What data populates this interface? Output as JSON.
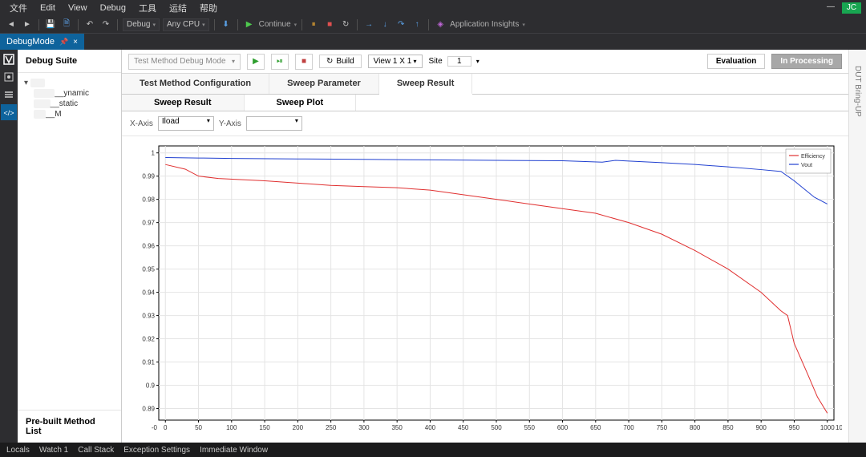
{
  "menu": {
    "items": [
      "文件",
      "Edit",
      "View",
      "Debug",
      "工具",
      "运结",
      "帮助"
    ]
  },
  "toolbar": {
    "combo_debug": "Debug",
    "combo_cpu": "Any CPU",
    "continue": "Continue",
    "appinsights": "Application Insights"
  },
  "doctab": {
    "name": "DebugMode"
  },
  "leftpanel": {
    "title": "Debug Suite",
    "tree_root": "...",
    "nodes": [
      "__ynamic",
      "__static",
      "__M"
    ],
    "bottom": "Pre-built Method List"
  },
  "maintop": {
    "method_combo": "Test Method Debug Mode",
    "build": "Build",
    "view": "View 1 X 1",
    "site_label": "Site",
    "site_value": "1",
    "evaluation": "Evaluation",
    "processing": "In Processing"
  },
  "tabs1": [
    "Test Method Configuration",
    "Sweep Parameter",
    "Sweep Result"
  ],
  "tabs1_active": 2,
  "tabs2": [
    "Sweep Result",
    "Sweep Plot"
  ],
  "tabs2_active": 1,
  "axis": {
    "x_label": "X-Axis",
    "x_value": "Iload",
    "y_label": "Y-Axis",
    "y_value": ""
  },
  "right_panel": "DUT Bring-UP",
  "status": [
    "Locals",
    "Watch 1",
    "Call Stack",
    "Exception Settings",
    "Immediate Window"
  ],
  "chart": {
    "type": "line",
    "xlim": [
      -10,
      1010
    ],
    "ylim": [
      0.885,
      1.003
    ],
    "xticks": [
      0,
      50,
      100,
      150,
      200,
      250,
      300,
      350,
      400,
      450,
      500,
      550,
      600,
      650,
      700,
      750,
      800,
      850,
      900,
      950,
      1000
    ],
    "xtick_extra_left": "-0",
    "xtick_extra_right": "10",
    "yticks": [
      0.89,
      0.9,
      0.91,
      0.92,
      0.93,
      0.94,
      0.95,
      0.96,
      0.97,
      0.98,
      0.99,
      1
    ],
    "grid_color": "#e4e4e4",
    "axis_color": "#000000",
    "background": "#ffffff",
    "legend": {
      "pos": "top-right",
      "border": "#808080",
      "items": [
        {
          "label": "Efficiency",
          "color": "#e03030"
        },
        {
          "label": "Vout",
          "color": "#2040d0"
        }
      ]
    },
    "series": [
      {
        "name": "Efficiency",
        "color": "#e03030",
        "width": 1,
        "points": [
          [
            0,
            0.995
          ],
          [
            30,
            0.993
          ],
          [
            50,
            0.99
          ],
          [
            80,
            0.989
          ],
          [
            150,
            0.988
          ],
          [
            200,
            0.987
          ],
          [
            250,
            0.986
          ],
          [
            300,
            0.9855
          ],
          [
            350,
            0.985
          ],
          [
            400,
            0.984
          ],
          [
            450,
            0.982
          ],
          [
            500,
            0.98
          ],
          [
            550,
            0.978
          ],
          [
            600,
            0.976
          ],
          [
            650,
            0.974
          ],
          [
            700,
            0.97
          ],
          [
            750,
            0.965
          ],
          [
            800,
            0.958
          ],
          [
            850,
            0.95
          ],
          [
            900,
            0.94
          ],
          [
            930,
            0.932
          ],
          [
            940,
            0.93
          ],
          [
            950,
            0.918
          ],
          [
            970,
            0.905
          ],
          [
            985,
            0.895
          ],
          [
            1000,
            0.888
          ]
        ]
      },
      {
        "name": "Vout",
        "color": "#2040d0",
        "width": 1,
        "points": [
          [
            0,
            0.998
          ],
          [
            50,
            0.9978
          ],
          [
            100,
            0.9976
          ],
          [
            200,
            0.9974
          ],
          [
            300,
            0.9972
          ],
          [
            400,
            0.997
          ],
          [
            500,
            0.9968
          ],
          [
            600,
            0.9966
          ],
          [
            660,
            0.996
          ],
          [
            680,
            0.9968
          ],
          [
            700,
            0.9965
          ],
          [
            750,
            0.9958
          ],
          [
            800,
            0.995
          ],
          [
            850,
            0.994
          ],
          [
            900,
            0.9928
          ],
          [
            930,
            0.992
          ],
          [
            950,
            0.988
          ],
          [
            980,
            0.981
          ],
          [
            1000,
            0.978
          ]
        ]
      }
    ]
  }
}
